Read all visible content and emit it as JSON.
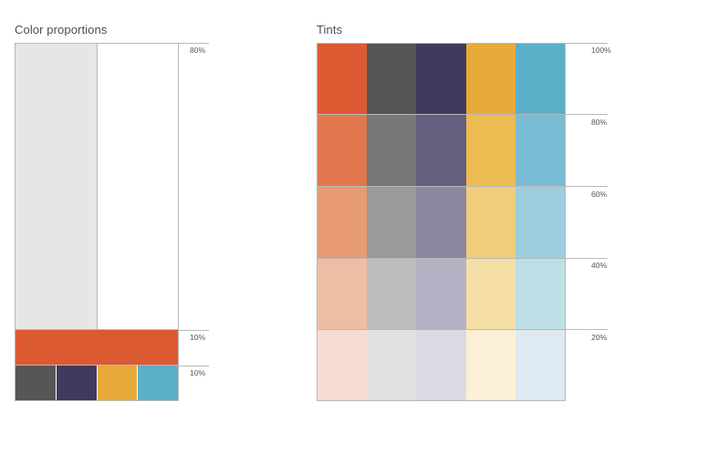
{
  "proportions": {
    "title": "Color proportions",
    "labels": [
      "80%",
      "10%",
      "10%"
    ],
    "neutral_colors": [
      "#e6e6e6",
      "#ffffff"
    ],
    "accent_color": "#dc5a32",
    "secondary_colors": [
      "#565656",
      "#403a5e",
      "#e8aa3a",
      "#5bb0c9"
    ]
  },
  "tints": {
    "title": "Tints",
    "levels": [
      "100%",
      "80%",
      "60%",
      "40%",
      "20%"
    ],
    "rows": [
      [
        "#dc5a32",
        "#565656",
        "#403a5e",
        "#e8aa3a",
        "#5bb0c9"
      ],
      [
        "#e2774e",
        "#777777",
        "#645f7f",
        "#ecbb52",
        "#78bdd3"
      ],
      [
        "#e89a73",
        "#9a9a9a",
        "#8b879f",
        "#f0cd7a",
        "#9ccedf"
      ],
      [
        "#eebda3",
        "#bdbdbd",
        "#b2b0c2",
        "#f5dfa6",
        "#bedfe6"
      ],
      [
        "#f7dcd2",
        "#e0e0e0",
        "#dbdae2",
        "#fbf0d5",
        "#dfe9f2"
      ]
    ]
  }
}
